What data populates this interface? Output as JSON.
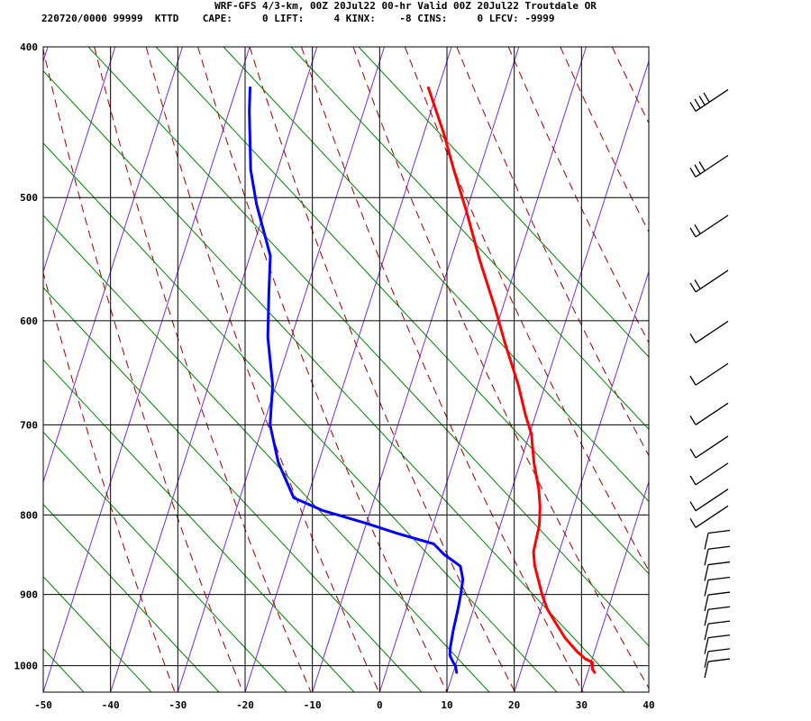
{
  "header": {
    "title": "WRF-GFS 4/3-km, 00Z 20Jul22 00-hr Valid 00Z 20Jul22 Troutdale OR",
    "stats": "220720/0000 99999  KTTD    CAPE:     0 LIFT:     4 KINX:    -8 CINS:     0 LFCV: -9999"
  },
  "chart_data": {
    "type": "line",
    "chart_kind": "skew-T log-P sounding",
    "xlim": [
      -50,
      40
    ],
    "ylim": [
      1040,
      400
    ],
    "y_scale": "log (pressure)",
    "x_ticks": [
      -50,
      -40,
      -30,
      -20,
      -10,
      0,
      10,
      20,
      30,
      40
    ],
    "y_ticks": [
      400,
      500,
      600,
      700,
      800,
      900,
      1000
    ],
    "grid": true,
    "colors": {
      "temperature": "#ff0000",
      "dewpoint": "#0000ff",
      "isotherm": "#7a2ed0",
      "dry_adiabat": "#9a0000",
      "mixing_ratio": "#008000",
      "grid": "#000000"
    },
    "series": [
      {
        "key": "temperature",
        "points": [
          [
            1010,
            31
          ],
          [
            1005,
            30.5
          ],
          [
            995,
            30.2
          ],
          [
            990,
            29
          ],
          [
            980,
            27.5
          ],
          [
            960,
            25
          ],
          [
            940,
            23
          ],
          [
            920,
            21
          ],
          [
            900,
            19.5
          ],
          [
            880,
            18.2
          ],
          [
            862,
            17
          ],
          [
            845,
            16.2
          ],
          [
            830,
            16
          ],
          [
            812,
            15.8
          ],
          [
            790,
            15
          ],
          [
            770,
            14
          ],
          [
            740,
            12
          ],
          [
            710,
            10.3
          ],
          [
            690,
            8.5
          ],
          [
            660,
            6
          ],
          [
            620,
            2
          ],
          [
            590,
            -1
          ],
          [
            550,
            -5.5
          ],
          [
            510,
            -10
          ],
          [
            480,
            -13.8
          ],
          [
            455,
            -17
          ],
          [
            425,
            -21.5
          ]
        ]
      },
      {
        "key": "dewpoint",
        "points": [
          [
            1010,
            10.5
          ],
          [
            1000,
            10
          ],
          [
            995,
            9.5
          ],
          [
            985,
            8.7
          ],
          [
            975,
            8.4
          ],
          [
            950,
            8
          ],
          [
            920,
            7.7
          ],
          [
            900,
            7.4
          ],
          [
            880,
            7
          ],
          [
            863,
            6
          ],
          [
            848,
            3
          ],
          [
            835,
            1
          ],
          [
            822,
            -5
          ],
          [
            810,
            -10
          ],
          [
            795,
            -17
          ],
          [
            780,
            -22
          ],
          [
            740,
            -26
          ],
          [
            700,
            -29
          ],
          [
            660,
            -30.5
          ],
          [
            615,
            -33.5
          ],
          [
            575,
            -35.5
          ],
          [
            545,
            -37
          ],
          [
            505,
            -41.5
          ],
          [
            480,
            -44
          ],
          [
            440,
            -47
          ],
          [
            425,
            -48
          ]
        ]
      }
    ],
    "wind_barbs": {
      "levels_hPa": [
        1010,
        995,
        975,
        955,
        935,
        915,
        895,
        875,
        855,
        835,
        815,
        795,
        765,
        735,
        700,
        660,
        620,
        575,
        530,
        485,
        440
      ],
      "barbs_per_level": [
        1,
        1,
        1,
        1,
        1,
        1,
        1,
        1,
        1,
        1,
        1,
        1,
        1,
        1,
        1,
        1,
        1,
        2,
        2,
        3,
        4
      ]
    }
  }
}
